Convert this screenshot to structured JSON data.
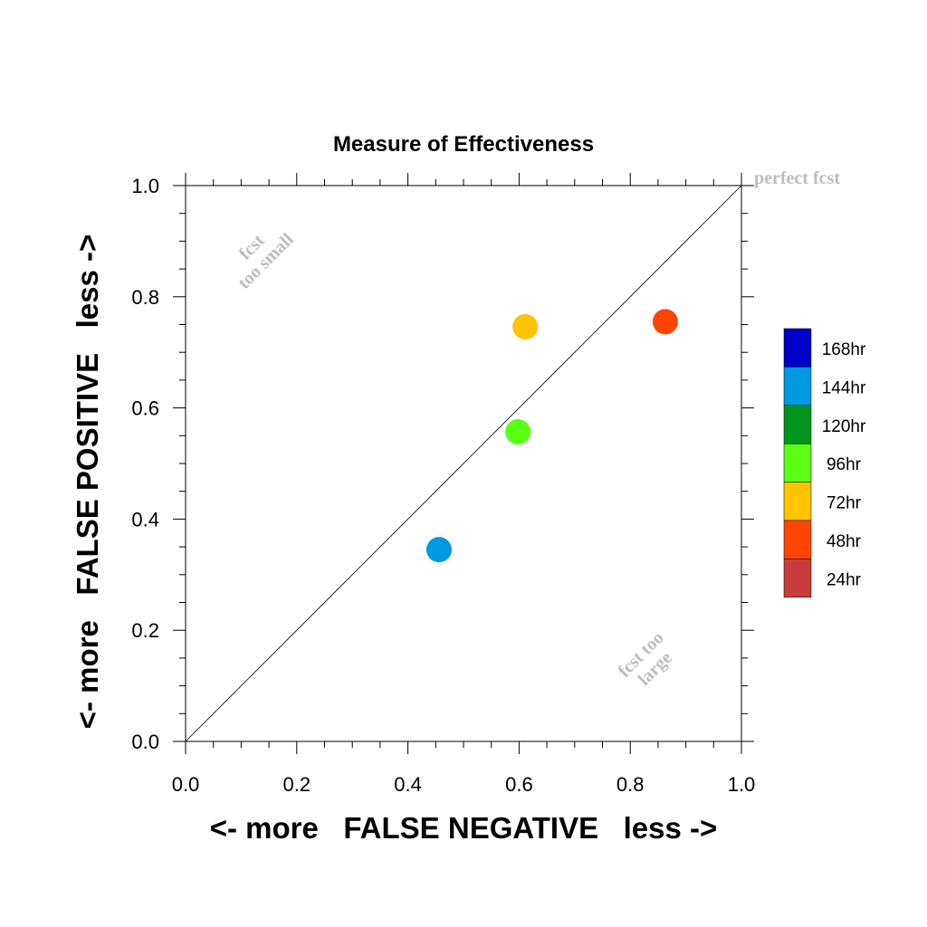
{
  "chart_data": {
    "type": "scatter",
    "title": "Measure of Effectiveness",
    "xlabel": "<- more   FALSE NEGATIVE   less ->",
    "ylabel": "<- more   FALSE POSITIVE   less ->",
    "xlim": [
      0.0,
      1.0
    ],
    "ylim": [
      0.0,
      1.0
    ],
    "xticks": [
      "0.0",
      "0.2",
      "0.4",
      "0.6",
      "0.8",
      "1.0"
    ],
    "yticks": [
      "0.0",
      "0.2",
      "0.4",
      "0.6",
      "0.8",
      "1.0"
    ],
    "diagonal": true,
    "grid": false,
    "legend_position": "right",
    "annotations": {
      "perfect": "perfect fcst",
      "too_small_1": "fcst",
      "too_small_2": "too small",
      "too_large_1": "fcst too",
      "too_large_2": "large"
    },
    "legend": [
      {
        "label": "168hr",
        "color": "#0000c8"
      },
      {
        "label": "144hr",
        "color": "#0099e0"
      },
      {
        "label": "120hr",
        "color": "#00961e"
      },
      {
        "label": "96hr",
        "color": "#5aff14"
      },
      {
        "label": "72hr",
        "color": "#ffc300"
      },
      {
        "label": "48hr",
        "color": "#ff4600"
      },
      {
        "label": "24hr",
        "color": "#c83c3c"
      }
    ],
    "points": [
      {
        "series": "144hr",
        "x": 0.456,
        "y": 0.345,
        "color": "#0099e0"
      },
      {
        "series": "96hr",
        "x": 0.598,
        "y": 0.557,
        "color": "#5aff14"
      },
      {
        "series": "72hr",
        "x": 0.611,
        "y": 0.746,
        "color": "#ffc300"
      },
      {
        "series": "48hr",
        "x": 0.863,
        "y": 0.755,
        "color": "#ff4600"
      }
    ]
  }
}
